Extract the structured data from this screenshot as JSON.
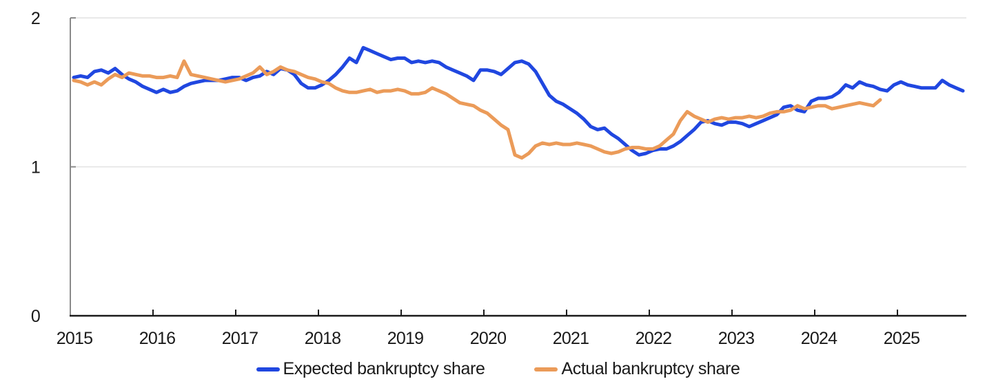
{
  "chart_data": {
    "type": "line",
    "title": "",
    "xlabel": "",
    "ylabel": "",
    "ylim": [
      0,
      2
    ],
    "y_ticks": [
      0,
      1,
      2
    ],
    "x_tick_labels": [
      "2015",
      "2016",
      "2017",
      "2018",
      "2019",
      "2020",
      "2021",
      "2022",
      "2023",
      "2024",
      "2025"
    ],
    "frequency": "monthly",
    "grid": "horizontal gridlines at y=1 and y=2",
    "legend_position": "bottom-center",
    "series": [
      {
        "name": "Expected bankruptcy share",
        "color": "#2047e0",
        "start": "2015-01",
        "end": "2025-10",
        "values": [
          1.6,
          1.61,
          1.6,
          1.64,
          1.65,
          1.63,
          1.66,
          1.62,
          1.59,
          1.57,
          1.54,
          1.52,
          1.5,
          1.52,
          1.5,
          1.51,
          1.54,
          1.56,
          1.57,
          1.58,
          1.58,
          1.58,
          1.59,
          1.6,
          1.6,
          1.58,
          1.6,
          1.61,
          1.64,
          1.62,
          1.66,
          1.65,
          1.62,
          1.56,
          1.53,
          1.53,
          1.55,
          1.58,
          1.62,
          1.67,
          1.73,
          1.7,
          1.8,
          1.78,
          1.76,
          1.74,
          1.72,
          1.73,
          1.73,
          1.7,
          1.71,
          1.7,
          1.71,
          1.7,
          1.67,
          1.65,
          1.63,
          1.61,
          1.58,
          1.65,
          1.65,
          1.64,
          1.62,
          1.66,
          1.7,
          1.71,
          1.69,
          1.64,
          1.56,
          1.48,
          1.44,
          1.42,
          1.39,
          1.36,
          1.32,
          1.27,
          1.25,
          1.26,
          1.22,
          1.19,
          1.15,
          1.11,
          1.08,
          1.09,
          1.11,
          1.12,
          1.12,
          1.14,
          1.17,
          1.21,
          1.25,
          1.3,
          1.31,
          1.29,
          1.28,
          1.3,
          1.3,
          1.29,
          1.27,
          1.29,
          1.31,
          1.33,
          1.35,
          1.4,
          1.41,
          1.38,
          1.37,
          1.44,
          1.46,
          1.46,
          1.47,
          1.5,
          1.55,
          1.53,
          1.57,
          1.55,
          1.54,
          1.52,
          1.51,
          1.55,
          1.57,
          1.55,
          1.54,
          1.53,
          1.53,
          1.53,
          1.58,
          1.55,
          1.53,
          1.51
        ]
      },
      {
        "name": "Actual bankruptcy share",
        "color": "#eb9b59",
        "start": "2015-01",
        "end": "2024-10",
        "values": [
          1.58,
          1.57,
          1.55,
          1.57,
          1.55,
          1.59,
          1.62,
          1.6,
          1.63,
          1.62,
          1.61,
          1.61,
          1.6,
          1.6,
          1.61,
          1.6,
          1.71,
          1.62,
          1.61,
          1.6,
          1.59,
          1.58,
          1.57,
          1.58,
          1.59,
          1.61,
          1.63,
          1.67,
          1.62,
          1.64,
          1.67,
          1.65,
          1.64,
          1.62,
          1.6,
          1.59,
          1.57,
          1.56,
          1.53,
          1.51,
          1.5,
          1.5,
          1.51,
          1.52,
          1.5,
          1.51,
          1.51,
          1.52,
          1.51,
          1.49,
          1.49,
          1.5,
          1.53,
          1.51,
          1.49,
          1.46,
          1.43,
          1.42,
          1.41,
          1.38,
          1.36,
          1.32,
          1.28,
          1.25,
          1.08,
          1.06,
          1.09,
          1.14,
          1.16,
          1.15,
          1.16,
          1.15,
          1.15,
          1.16,
          1.15,
          1.14,
          1.12,
          1.1,
          1.09,
          1.1,
          1.12,
          1.13,
          1.13,
          1.12,
          1.12,
          1.14,
          1.18,
          1.22,
          1.31,
          1.37,
          1.34,
          1.32,
          1.3,
          1.32,
          1.33,
          1.32,
          1.33,
          1.33,
          1.34,
          1.33,
          1.34,
          1.36,
          1.37,
          1.37,
          1.38,
          1.41,
          1.39,
          1.4,
          1.41,
          1.41,
          1.39,
          1.4,
          1.41,
          1.42,
          1.43,
          1.42,
          1.41,
          1.45
        ]
      }
    ]
  },
  "legend": {
    "items": [
      {
        "label": "Expected bankruptcy share",
        "color": "#2047e0"
      },
      {
        "label": "Actual bankruptcy share",
        "color": "#eb9b59"
      }
    ]
  },
  "colors": {
    "expected_line": "#2047e0",
    "actual_line": "#eb9b59",
    "gridline": "#e2e2e2",
    "y_axis_line": "#8a8a8a",
    "x_axis_line": "#1a1a1a",
    "text": "#1a1a1a"
  }
}
